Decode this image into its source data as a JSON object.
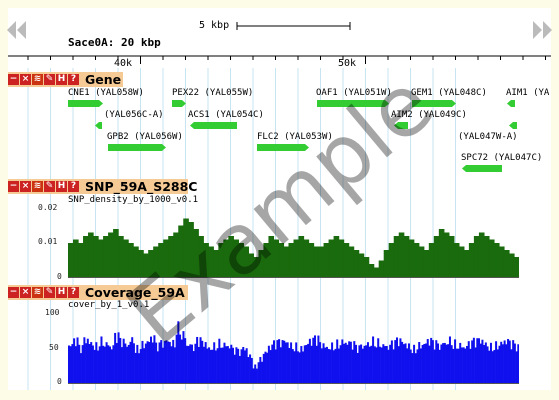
{
  "view": {
    "scalebar_label": "5 kbp",
    "chrom_label": "Sace0A: 20 kbp",
    "ruler_ticks": [
      "40k",
      "50k"
    ]
  },
  "nav": {
    "left_arrow": "scroll-left",
    "right_arrow": "scroll-right"
  },
  "tracks": {
    "gene": {
      "title": "Gene",
      "genes": [
        {
          "label": "CNE1 (YAL058W)"
        },
        {
          "label": "PEX22 (YAL055W)"
        },
        {
          "label": "OAF1 (YAL051W)"
        },
        {
          "label": "GEM1 (YAL048C)"
        },
        {
          "label": "AIM1 (YA"
        },
        {
          "label": "(YAL056C-A)"
        },
        {
          "label": "ACS1 (YAL054C)"
        },
        {
          "label": "AIM2 (YAL049C)"
        },
        {
          "label": "GPB2 (YAL056W)"
        },
        {
          "label": "FLC2 (YAL053W)"
        },
        {
          "label": "(YAL047W-A)"
        },
        {
          "label": "SPC72 (YAL047C)"
        }
      ]
    },
    "snp": {
      "title": "SNP_59A_S288C",
      "subtitle": "SNP_density_by_1000_v0.1",
      "y_ticks": [
        "0.02",
        "0.01",
        "0"
      ],
      "color": "#1a6b0d"
    },
    "coverage": {
      "title": "Coverage_59A",
      "subtitle": "cover_by_1_v0.1",
      "y_ticks": [
        "100",
        "50",
        "0"
      ],
      "color": "#1010ee"
    }
  },
  "watermark": "Example",
  "chart_data": [
    {
      "type": "area",
      "series": [
        {
          "name": "SNP_density_by_1000_v0.1",
          "values": [
            0.01,
            0.011,
            0.01,
            0.012,
            0.013,
            0.012,
            0.011,
            0.012,
            0.013,
            0.014,
            0.012,
            0.011,
            0.01,
            0.009,
            0.008,
            0.007,
            0.008,
            0.009,
            0.01,
            0.011,
            0.012,
            0.013,
            0.015,
            0.017,
            0.016,
            0.014,
            0.012,
            0.01,
            0.009,
            0.008,
            0.01,
            0.011,
            0.012,
            0.011,
            0.01,
            0.009,
            0.007,
            0.006,
            0.008,
            0.01,
            0.012,
            0.011,
            0.01,
            0.009,
            0.01,
            0.011,
            0.012,
            0.011,
            0.01,
            0.009,
            0.009,
            0.01,
            0.011,
            0.012,
            0.011,
            0.01,
            0.009,
            0.008,
            0.007,
            0.006,
            0.004,
            0.003,
            0.005,
            0.008,
            0.01,
            0.012,
            0.013,
            0.012,
            0.011,
            0.01,
            0.009,
            0.008,
            0.01,
            0.012,
            0.014,
            0.013,
            0.012,
            0.01,
            0.009,
            0.008,
            0.01,
            0.012,
            0.013,
            0.012,
            0.011,
            0.01,
            0.009,
            0.008,
            0.007,
            0.006
          ]
        }
      ],
      "ylim": [
        0,
        0.02
      ]
    },
    {
      "type": "bar",
      "series": [
        {
          "name": "cover_by_1_v0.1",
          "values": [
            55,
            60,
            50,
            62,
            58,
            54,
            61,
            57,
            52,
            66,
            59,
            55,
            63,
            50,
            56,
            60,
            64,
            53,
            57,
            61,
            58,
            80,
            70,
            55,
            52,
            60,
            57,
            51,
            54,
            58,
            56,
            53,
            47,
            45,
            50,
            40,
            25,
            35,
            45,
            52,
            56,
            58,
            60,
            55,
            53,
            50,
            56,
            60,
            62,
            55,
            52,
            54,
            57,
            60,
            58,
            55,
            50,
            53,
            57,
            61,
            59,
            55,
            52,
            56,
            60,
            58,
            54,
            50,
            55,
            57,
            60,
            56,
            53,
            58,
            62,
            57,
            55,
            52,
            56,
            59,
            61,
            57,
            53,
            55,
            58,
            60,
            56,
            52
          ]
        }
      ],
      "ylim": [
        0,
        100
      ]
    }
  ]
}
